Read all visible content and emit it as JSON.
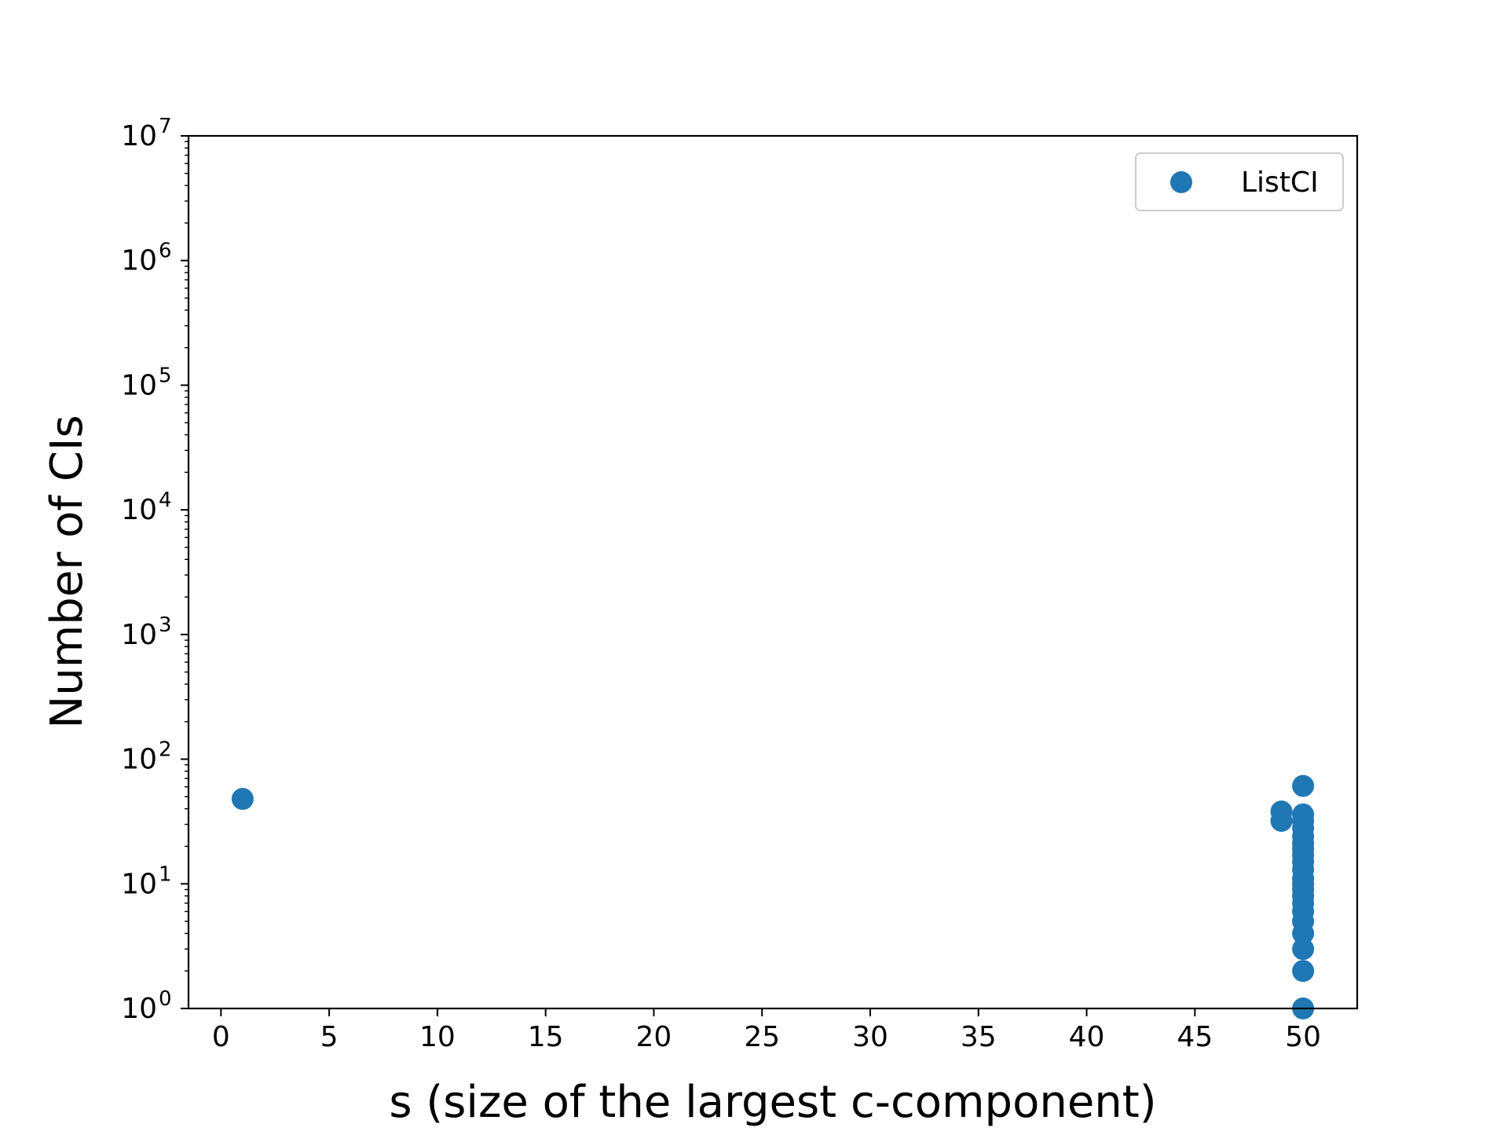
{
  "chart_data": {
    "type": "scatter",
    "xlabel": "s (size of the largest c-component)",
    "ylabel": "Number of CIs",
    "xlim": [
      -1.5,
      52.5
    ],
    "ylim": [
      1,
      10000000
    ],
    "yscale": "log",
    "grid": false,
    "legend_position": "top-right",
    "xticks": [
      "0",
      "5",
      "10",
      "15",
      "20",
      "25",
      "30",
      "35",
      "40",
      "45",
      "50"
    ],
    "yticks": [
      {
        "base": "10",
        "exp": "0"
      },
      {
        "base": "10",
        "exp": "1"
      },
      {
        "base": "10",
        "exp": "2"
      },
      {
        "base": "10",
        "exp": "3"
      },
      {
        "base": "10",
        "exp": "4"
      },
      {
        "base": "10",
        "exp": "5"
      },
      {
        "base": "10",
        "exp": "6"
      },
      {
        "base": "10",
        "exp": "7"
      }
    ],
    "series": [
      {
        "name": "ListCI",
        "color": "#1f77b4",
        "points": [
          {
            "x": 1,
            "y": 48
          },
          {
            "x": 49,
            "y": 38
          },
          {
            "x": 49,
            "y": 32
          },
          {
            "x": 50,
            "y": 1
          },
          {
            "x": 50,
            "y": 2
          },
          {
            "x": 50,
            "y": 3
          },
          {
            "x": 50,
            "y": 4
          },
          {
            "x": 50,
            "y": 5
          },
          {
            "x": 50,
            "y": 6
          },
          {
            "x": 50,
            "y": 7
          },
          {
            "x": 50,
            "y": 8
          },
          {
            "x": 50,
            "y": 9
          },
          {
            "x": 50,
            "y": 10
          },
          {
            "x": 50,
            "y": 11
          },
          {
            "x": 50,
            "y": 13
          },
          {
            "x": 50,
            "y": 15
          },
          {
            "x": 50,
            "y": 17
          },
          {
            "x": 50,
            "y": 19
          },
          {
            "x": 50,
            "y": 21
          },
          {
            "x": 50,
            "y": 24
          },
          {
            "x": 50,
            "y": 28
          },
          {
            "x": 50,
            "y": 32
          },
          {
            "x": 50,
            "y": 36
          },
          {
            "x": 50,
            "y": 61
          }
        ]
      }
    ]
  }
}
